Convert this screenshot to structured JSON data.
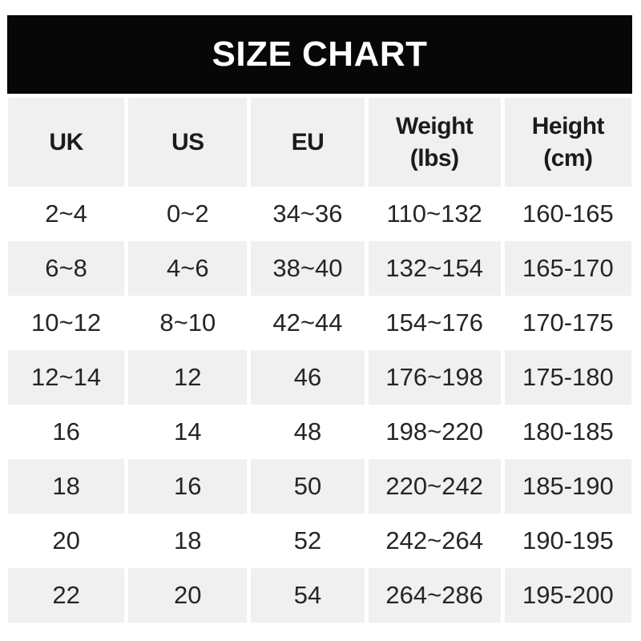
{
  "title": "SIZE CHART",
  "chart_data": {
    "type": "table",
    "title": "SIZE CHART",
    "columns": [
      "UK",
      "US",
      "EU",
      "Weight (lbs)",
      "Height (cm)"
    ],
    "rows": [
      [
        "2~4",
        "0~2",
        "34~36",
        "110~132",
        "160-165"
      ],
      [
        "6~8",
        "4~6",
        "38~40",
        "132~154",
        "165-170"
      ],
      [
        "10~12",
        "8~10",
        "42~44",
        "154~176",
        "170-175"
      ],
      [
        "12~14",
        "12",
        "46",
        "176~198",
        "175-180"
      ],
      [
        "16",
        "14",
        "48",
        "198~220",
        "180-185"
      ],
      [
        "18",
        "16",
        "50",
        "220~242",
        "185-190"
      ],
      [
        "20",
        "18",
        "52",
        "242~264",
        "190-195"
      ],
      [
        "22",
        "20",
        "54",
        "264~286",
        "195-200"
      ]
    ],
    "row_striping": "header and odd data rows shaded gray, others white",
    "legend_position": "none"
  },
  "table": {
    "headers": [
      {
        "line1": "UK",
        "line2": ""
      },
      {
        "line1": "US",
        "line2": ""
      },
      {
        "line1": "EU",
        "line2": ""
      },
      {
        "line1": "Weight",
        "line2": "(lbs)"
      },
      {
        "line1": "Height",
        "line2": "(cm)"
      }
    ]
  },
  "colors": {
    "title_bar_bg": "#070707",
    "title_text": "#ffffff",
    "shaded_cell_bg": "#f0f0f0",
    "cell_text": "#252525",
    "header_text": "#1b1b1b",
    "page_bg": "#ffffff"
  }
}
